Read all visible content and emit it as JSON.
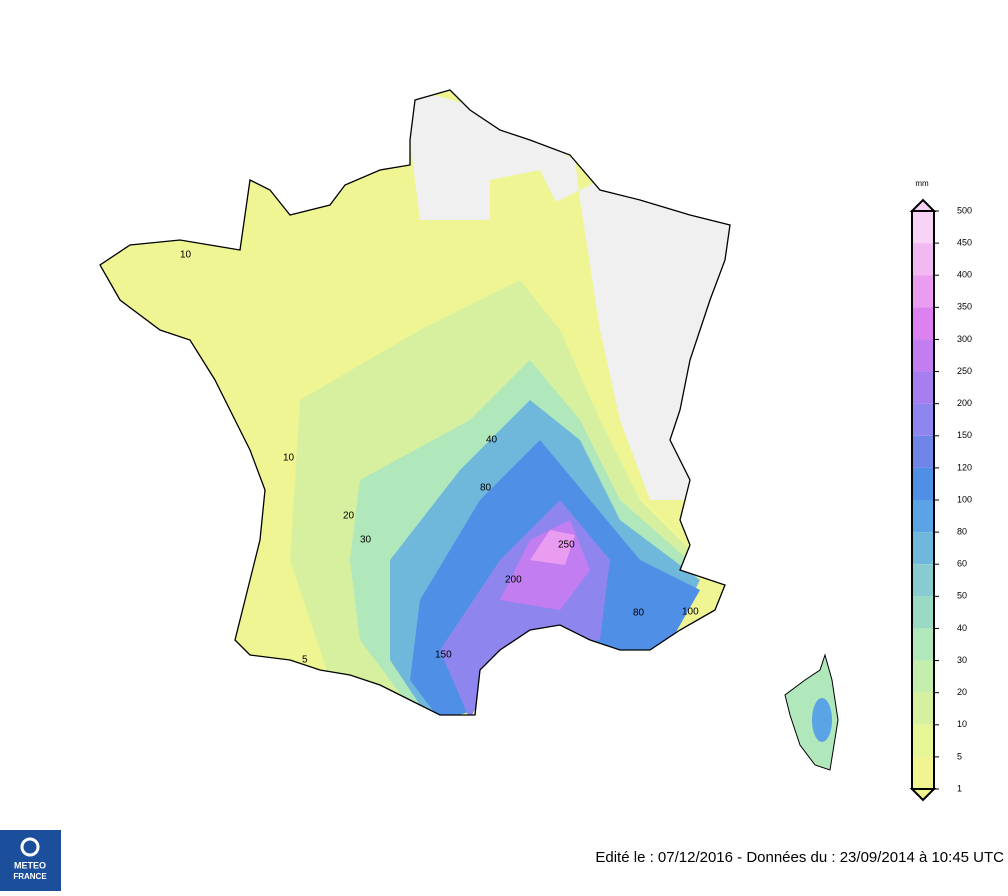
{
  "legend": {
    "unit": "mm",
    "levels": [
      500,
      450,
      400,
      350,
      300,
      250,
      200,
      150,
      120,
      100,
      80,
      60,
      50,
      40,
      30,
      20,
      10,
      5,
      1
    ],
    "colors": [
      "#f7d4f5",
      "#f2b8f2",
      "#ea9cf0",
      "#dd80f0",
      "#c27ef0",
      "#a77ef0",
      "#8f85ee",
      "#6f86e8",
      "#4f8fe6",
      "#5aa3e4",
      "#6fb8dc",
      "#88cbd0",
      "#9ad9c4",
      "#b0e8bc",
      "#c5eeac",
      "#d6f0a0",
      "#e6f596",
      "#f0f591"
    ]
  },
  "map": {
    "contour_labels": [
      "10",
      "10",
      "5",
      "20",
      "30",
      "40",
      "80",
      "150",
      "200",
      "250",
      "80",
      "100"
    ]
  },
  "logo": {
    "line1": "METEO",
    "line2": "FRANCE"
  },
  "footer": "Edité le : 07/12/2016 - Données du : 23/09/2014 à 10:45 UTC"
}
